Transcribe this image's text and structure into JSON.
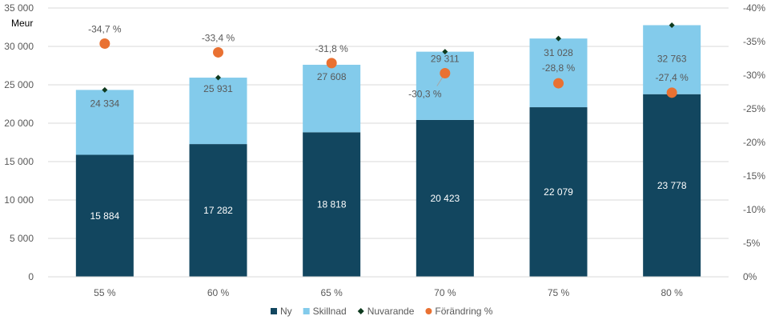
{
  "chart_data": {
    "type": "bar",
    "stacked": true,
    "categories": [
      "55 %",
      "60 %",
      "65 %",
      "70 %",
      "75 %",
      "80 %"
    ],
    "series": [
      {
        "name": "Ny",
        "type": "bar",
        "axis": "left",
        "color": "#12465F",
        "values": [
          15884,
          17282,
          18818,
          20423,
          22079,
          23778
        ],
        "labels": [
          "15 884",
          "17 282",
          "18 818",
          "20 423",
          "22 079",
          "23 778"
        ]
      },
      {
        "name": "Skillnad",
        "type": "bar",
        "axis": "left",
        "color": "#83CBEB",
        "values": [
          8450,
          8649,
          8790,
          8888,
          8949,
          8985
        ]
      },
      {
        "name": "Nuvarande",
        "type": "marker",
        "axis": "left",
        "color": "#0E3A1E",
        "values": [
          24334,
          25931,
          27608,
          29311,
          31028,
          32763
        ],
        "labels": [
          "24 334",
          "25 931",
          "27 608",
          "29 311",
          "31 028",
          "32 763"
        ]
      },
      {
        "name": "Förändring %",
        "type": "marker",
        "axis": "right",
        "color": "#E97132",
        "values": [
          -34.7,
          -33.4,
          -31.8,
          -30.3,
          -28.8,
          -27.4
        ],
        "labels": [
          "-34,7 %",
          "-33,4 %",
          "-31,8 %",
          "-30,3 %",
          "-28,8 %",
          "-27,4 %"
        ]
      }
    ],
    "ylabel": "Meur",
    "ylim": [
      0,
      35000
    ],
    "yticks": [
      "0",
      "5 000",
      "10 000",
      "15 000",
      "20 000",
      "25 000",
      "30 000",
      "35 000"
    ],
    "y2lim": [
      0,
      -40
    ],
    "y2ticks": [
      "0%",
      "-5%",
      "-10%",
      "-15%",
      "-20%",
      "-25%",
      "-30%",
      "-35%",
      "-40%"
    ],
    "grid": true,
    "legend": "bottom"
  }
}
